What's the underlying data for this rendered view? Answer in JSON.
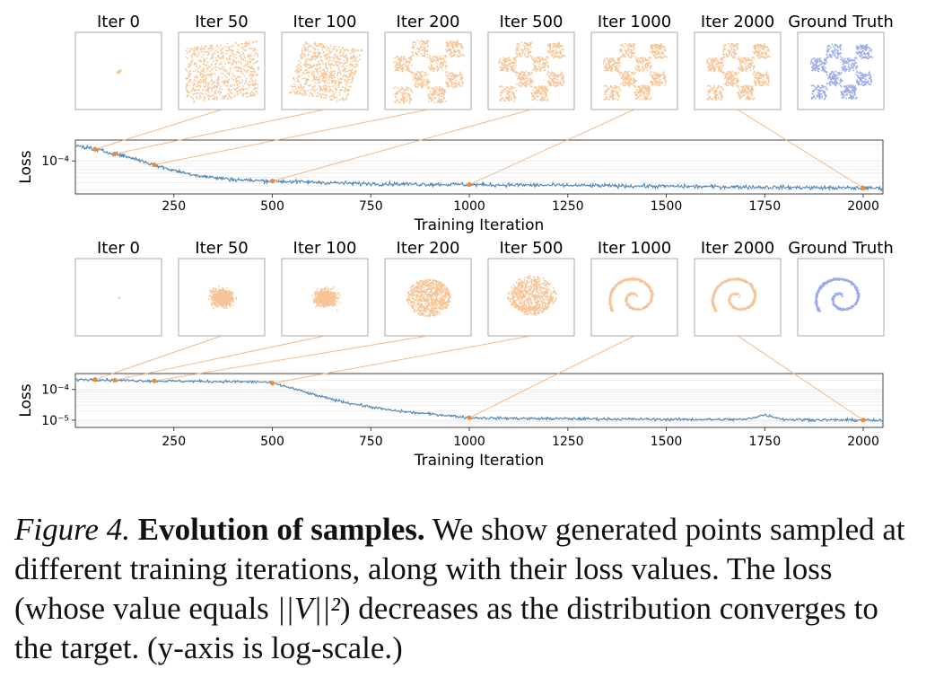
{
  "colors": {
    "generated": "#f0933f",
    "ground_truth": "#4a63d8",
    "loss_line": "#4f86b6",
    "marker": "#f08a2e",
    "connector": "#f2b98a",
    "grid": "#e6e6e6"
  },
  "chart_data": [
    {
      "type": "line",
      "title": "Checkerboard target",
      "panel_titles": [
        "Iter 0",
        "Iter 50",
        "Iter 100",
        "Iter 200",
        "Iter 500",
        "Iter 1000",
        "Iter 2000",
        "Ground Truth"
      ],
      "panel_shapes": [
        "ellipse",
        "square",
        "diamond",
        "checker",
        "checker",
        "checker",
        "checker",
        "checker"
      ],
      "panel_spreads": [
        0.12,
        0.85,
        0.75,
        0.8,
        0.75,
        0.72,
        0.72,
        0.7
      ],
      "marked_iterations": [
        50,
        100,
        200,
        500,
        1000,
        2000
      ],
      "xlabel": "Training Iteration",
      "ylabel": "Loss",
      "xlim": [
        0,
        2050
      ],
      "xticks": [
        250,
        500,
        750,
        1000,
        1250,
        1500,
        1750,
        2000
      ],
      "yscale": "log",
      "ylim": [
        2.5e-05,
        0.00024
      ],
      "ytick_labels": [
        "10⁻⁴"
      ],
      "ytick_values": [
        0.0001
      ],
      "series": [
        {
          "name": "loss",
          "x": [
            0,
            40,
            80,
            120,
            160,
            200,
            240,
            280,
            320,
            360,
            400,
            450,
            500,
            550,
            600,
            650,
            700,
            800,
            900,
            1000,
            1100,
            1200,
            1300,
            1400,
            1500,
            1600,
            1700,
            1800,
            1900,
            2000,
            2050
          ],
          "y": [
            0.00019,
            0.00017,
            0.000145,
            0.000125,
            0.000105,
            8.5e-05,
            7e-05,
            6e-05,
            5.3e-05,
            4.9e-05,
            4.6e-05,
            4.4e-05,
            4.3e-05,
            4.2e-05,
            4.1e-05,
            4e-05,
            3.9e-05,
            3.8e-05,
            3.75e-05,
            3.7e-05,
            3.65e-05,
            3.6e-05,
            3.55e-05,
            3.5e-05,
            3.45e-05,
            3.4e-05,
            3.35e-05,
            3.3e-05,
            3.25e-05,
            3.2e-05,
            3.2e-05
          ]
        }
      ],
      "noise": 0.08
    },
    {
      "type": "line",
      "title": "Spiral target",
      "panel_titles": [
        "Iter 0",
        "Iter 50",
        "Iter 100",
        "Iter 200",
        "Iter 500",
        "Iter 1000",
        "Iter 2000",
        "Ground Truth"
      ],
      "panel_shapes": [
        "dot",
        "blob",
        "blob",
        "disc",
        "swirl",
        "spiral",
        "spiral",
        "spiral"
      ],
      "panel_spreads": [
        0.05,
        0.55,
        0.55,
        0.6,
        0.6,
        0.62,
        0.62,
        0.62
      ],
      "marked_iterations": [
        50,
        100,
        200,
        500,
        1000,
        2000
      ],
      "xlabel": "Training Iteration",
      "ylabel": "Loss",
      "xlim": [
        0,
        2050
      ],
      "xticks": [
        250,
        500,
        750,
        1000,
        1250,
        1500,
        1750,
        2000
      ],
      "yscale": "log",
      "ylim": [
        5.8e-06,
        0.00033
      ],
      "ytick_labels": [
        "10⁻⁴",
        "10⁻⁵"
      ],
      "ytick_values": [
        0.0001,
        1e-05
      ],
      "series": [
        {
          "name": "loss",
          "x": [
            0,
            50,
            100,
            200,
            300,
            400,
            480,
            500,
            550,
            600,
            650,
            700,
            750,
            800,
            850,
            900,
            950,
            1000,
            1100,
            1200,
            1300,
            1400,
            1500,
            1600,
            1700,
            1750,
            1800,
            1900,
            2000,
            2050
          ],
          "y": [
            0.00021,
            0.00021,
            0.0002,
            0.00019,
            0.000185,
            0.00018,
            0.000175,
            0.00016,
            0.00011,
            7e-05,
            4.8e-05,
            3.5e-05,
            2.7e-05,
            2.1e-05,
            1.8e-05,
            1.6e-05,
            1.4e-05,
            1.2e-05,
            1.15e-05,
            1.12e-05,
            1.1e-05,
            1.08e-05,
            1.06e-05,
            1.05e-05,
            1.05e-05,
            1.5e-05,
            1.05e-05,
            1.02e-05,
            1e-05,
            9.5e-06
          ]
        }
      ],
      "noise": 0.1
    }
  ],
  "caption": {
    "label": "Figure 4.",
    "title": "Evolution of samples.",
    "text_before_math": "We show generated points sampled at different training iterations, along with their loss values. The loss (whose value equals ",
    "math": "||V||²",
    "text_after_math": ") decreases as the distribution converges to the target. (y-axis is log-scale.)"
  }
}
